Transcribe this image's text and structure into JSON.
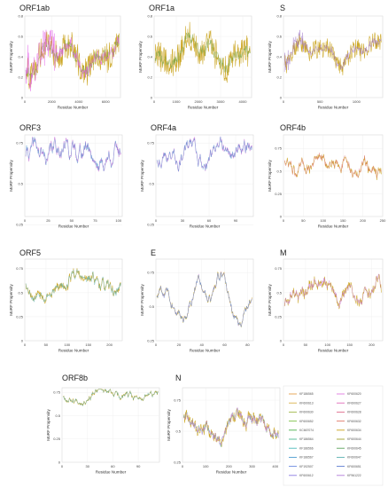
{
  "chart_data": [
    {
      "type": "line",
      "title": "ORF1ab",
      "xlabel": "Residue Number",
      "ylabel": "MoRF Propensity",
      "xlim": [
        0,
        7100
      ],
      "ylim": [
        0,
        0.8
      ],
      "xticks": [
        0,
        2000,
        4000,
        6000
      ],
      "yticks": [
        0.0,
        0.2,
        0.4,
        0.6,
        0.8
      ],
      "seed": 11,
      "base": 0.42,
      "amp": 0.18,
      "wave": 0.05,
      "noise": 0.3,
      "highlight_end": 0.33,
      "series": [
        {
          "color": "#c9a21a",
          "values": []
        },
        {
          "color": "#7aa64a",
          "values": []
        },
        {
          "color": "#e257e8",
          "values": []
        }
      ]
    },
    {
      "type": "line",
      "title": "ORF1a",
      "xlabel": "Residue Number",
      "ylabel": "MoRF Propensity",
      "xlim": [
        0,
        4400
      ],
      "ylim": [
        0,
        0.8
      ],
      "xticks": [
        0,
        1000,
        2000,
        3000,
        4000
      ],
      "yticks": [
        0.0,
        0.2,
        0.4,
        0.6,
        0.8
      ],
      "seed": 23,
      "base": 0.45,
      "amp": 0.16,
      "wave": 0.05,
      "noise": 0.28,
      "highlight_end": 0,
      "series": [
        {
          "color": "#c9a21a",
          "values": []
        },
        {
          "color": "#7aa64a",
          "values": []
        }
      ]
    },
    {
      "type": "line",
      "title": "S",
      "xlabel": "Residue Number",
      "ylabel": "MoRF Propensity",
      "xlim": [
        0,
        1360
      ],
      "ylim": [
        0,
        0.8
      ],
      "xticks": [
        0,
        500,
        1000
      ],
      "yticks": [
        0.0,
        0.2,
        0.4,
        0.6,
        0.8
      ],
      "seed": 37,
      "base": 0.45,
      "amp": 0.12,
      "wave": 0.04,
      "noise": 0.18,
      "highlight_end": 0.2,
      "series": [
        {
          "color": "#c9a21a",
          "values": []
        },
        {
          "color": "#9a72c7",
          "values": []
        }
      ]
    },
    {
      "type": "line",
      "title": "ORF3",
      "xlabel": "Residue Number",
      "ylabel": "MoRF Propensity",
      "xlim": [
        0,
        104
      ],
      "ylim": [
        0.3,
        0.8
      ],
      "xticks": [
        0,
        25,
        50,
        75,
        100
      ],
      "yticks": [
        0.25,
        0.5,
        0.75
      ],
      "seed": 41,
      "base": 0.7,
      "amp": 0.06,
      "wave": 0.07,
      "noise": 0.03,
      "highlight_end": 0,
      "series": [
        {
          "color": "#c97ad9",
          "values": []
        },
        {
          "color": "#5a9ad0",
          "values": []
        }
      ]
    },
    {
      "type": "line",
      "title": "ORF4a",
      "xlabel": "Residue Number",
      "ylabel": "MoRF Propensity",
      "xlim": [
        0,
        110
      ],
      "ylim": [
        0.3,
        0.8
      ],
      "xticks": [
        0,
        30,
        60,
        90
      ],
      "yticks": [
        0.25,
        0.5,
        0.75
      ],
      "seed": 43,
      "base": 0.68,
      "amp": 0.05,
      "wave": 0.06,
      "noise": 0.02,
      "highlight_end": 0,
      "series": [
        {
          "color": "#c97ad9",
          "values": []
        },
        {
          "color": "#5a9ad0",
          "values": []
        }
      ]
    },
    {
      "type": "line",
      "title": "ORF4b",
      "xlabel": "Residue Number",
      "ylabel": "MoRF Propensity",
      "xlim": [
        0,
        250
      ],
      "ylim": [
        0.0,
        0.9
      ],
      "xticks": [
        0,
        50,
        100,
        150,
        200,
        250
      ],
      "yticks": [
        0.0,
        0.25,
        0.5,
        0.75
      ],
      "seed": 47,
      "base": 0.58,
      "amp": 0.12,
      "wave": 0.1,
      "noise": 0.05,
      "highlight_end": 0,
      "series": [
        {
          "color": "#c9a21a",
          "values": []
        },
        {
          "color": "#e07a7a",
          "values": []
        }
      ]
    },
    {
      "type": "line",
      "title": "ORF5",
      "xlabel": "Residue Number",
      "ylabel": "MoRF Propensity",
      "xlim": [
        0,
        230
      ],
      "ylim": [
        0.0,
        0.85
      ],
      "xticks": [
        0,
        50,
        100,
        150,
        200
      ],
      "yticks": [
        0.0,
        0.25,
        0.5,
        0.75
      ],
      "seed": 53,
      "base": 0.6,
      "amp": 0.12,
      "wave": 0.08,
      "noise": 0.06,
      "highlight_end": 0,
      "series": [
        {
          "color": "#c9a21a",
          "values": []
        },
        {
          "color": "#5ab0b0",
          "values": []
        }
      ]
    },
    {
      "type": "line",
      "title": "E",
      "xlabel": "Residue Number",
      "ylabel": "MoRF Propensity",
      "xlim": [
        0,
        85
      ],
      "ylim": [
        0.25,
        0.85
      ],
      "xticks": [
        0,
        20,
        40,
        60,
        80
      ],
      "yticks": [
        0.25,
        0.5,
        0.75
      ],
      "seed": 59,
      "base": 0.58,
      "amp": 0.18,
      "wave": 0.05,
      "noise": 0.02,
      "highlight_end": 0,
      "series": [
        {
          "color": "#c9a21a",
          "values": []
        },
        {
          "color": "#c97ad9",
          "values": []
        },
        {
          "color": "#5a9ad0",
          "values": []
        }
      ]
    },
    {
      "type": "line",
      "title": "M",
      "xlabel": "Residue Number",
      "ylabel": "MoRF Propensity",
      "xlim": [
        0,
        225
      ],
      "ylim": [
        0.0,
        0.85
      ],
      "xticks": [
        0,
        50,
        100,
        150,
        200
      ],
      "yticks": [
        0.0,
        0.25,
        0.5,
        0.75
      ],
      "seed": 61,
      "base": 0.48,
      "amp": 0.12,
      "wave": 0.09,
      "noise": 0.07,
      "highlight_end": 0,
      "series": [
        {
          "color": "#c9a21a",
          "values": []
        },
        {
          "color": "#c97ad9",
          "values": []
        }
      ]
    },
    {
      "type": "line",
      "title": "ORF8b",
      "xlabel": "Residue Number",
      "ylabel": "MoRF Propensity",
      "xlim": [
        0,
        115
      ],
      "ylim": [
        0.0,
        0.8
      ],
      "xticks": [
        0,
        30,
        60,
        90
      ],
      "yticks": [
        0.0,
        0.25,
        0.5,
        0.75
      ],
      "seed": 67,
      "base": 0.72,
      "amp": 0.04,
      "wave": 0.05,
      "noise": 0.02,
      "highlight_end": 0,
      "series": [
        {
          "color": "#c9a21a",
          "values": []
        },
        {
          "color": "#5ab0b0",
          "values": []
        }
      ]
    },
    {
      "type": "line",
      "title": "N",
      "xlabel": "Residue Number",
      "ylabel": "MoRF Propensity",
      "xlim": [
        0,
        420
      ],
      "ylim": [
        0.25,
        0.85
      ],
      "xticks": [
        0,
        100,
        200,
        300,
        400
      ],
      "yticks": [
        0.25,
        0.5,
        0.75
      ],
      "seed": 71,
      "base": 0.55,
      "amp": 0.09,
      "wave": 0.06,
      "noise": 0.08,
      "highlight_end": 0,
      "series": [
        {
          "color": "#c9a21a",
          "values": []
        },
        {
          "color": "#5ab0b0",
          "values": []
        },
        {
          "color": "#c97ad9",
          "values": []
        }
      ]
    }
  ],
  "legend": {
    "col1": [
      {
        "label": "KF186565",
        "color": "#e8a04a"
      },
      {
        "label": "KF600613",
        "color": "#d9b24a"
      },
      {
        "label": "KF600630",
        "color": "#a0b84a"
      },
      {
        "label": "KF600652",
        "color": "#7fc04a"
      },
      {
        "label": "KC667074",
        "color": "#4ab04a"
      },
      {
        "label": "KF186564",
        "color": "#4ab890"
      },
      {
        "label": "KF186566",
        "color": "#4ab8b8"
      },
      {
        "label": "KF186567",
        "color": "#4a9ad0"
      },
      {
        "label": "KF192507",
        "color": "#6a88e0"
      },
      {
        "label": "KF600612",
        "color": "#8a7ae0"
      }
    ],
    "col2": [
      {
        "label": "KF600620",
        "color": "#e07ae0"
      },
      {
        "label": "KF600627",
        "color": "#e06ab8"
      },
      {
        "label": "KF600628",
        "color": "#e06a8a"
      },
      {
        "label": "KF600632",
        "color": "#e07a6a"
      },
      {
        "label": "KF600634",
        "color": "#c9a21a"
      },
      {
        "label": "KF600644",
        "color": "#a0a02a"
      },
      {
        "label": "KF600645",
        "color": "#5aa05a"
      },
      {
        "label": "KF600647",
        "color": "#5ab0b0"
      },
      {
        "label": "KF600651",
        "color": "#5a7ad0"
      },
      {
        "label": "KF961222",
        "color": "#b07ad9"
      }
    ]
  }
}
